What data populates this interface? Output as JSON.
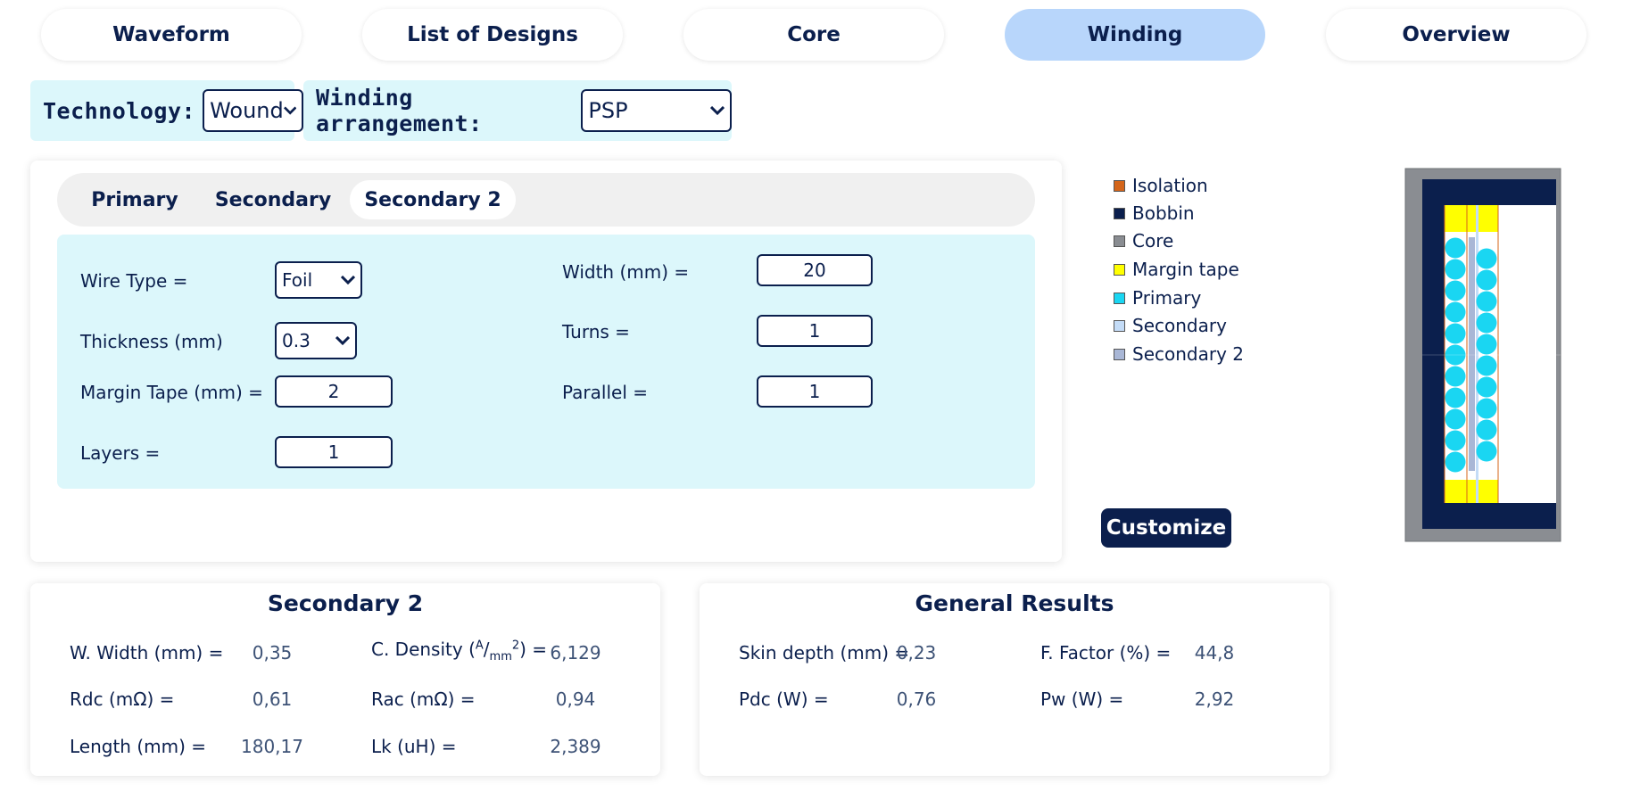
{
  "nav": {
    "tabs": [
      {
        "label": "Waveform"
      },
      {
        "label": "List of Designs"
      },
      {
        "label": "Core"
      },
      {
        "label": "Winding"
      },
      {
        "label": "Overview"
      }
    ],
    "active_tab": "Winding"
  },
  "settings": {
    "technology_label": "Technology:",
    "technology_value": "Wound",
    "arrangement_label": "Winding arrangement:",
    "arrangement_value": "PSP"
  },
  "winding_tabs": [
    {
      "label": "Primary"
    },
    {
      "label": "Secondary"
    },
    {
      "label": "Secondary 2"
    }
  ],
  "form": {
    "wire_type_label": "Wire Type =",
    "wire_type_value": "Foil",
    "thickness_label": "Thickness (mm)",
    "thickness_value": "0.3",
    "margin_tape_label": "Margin Tape (mm) =",
    "margin_tape_value": "2",
    "layers_label": "Layers =",
    "layers_value": "1",
    "width_label": "Width (mm) =",
    "width_value": "20",
    "turns_label": "Turns =",
    "turns_value": "1",
    "parallel_label": "Parallel =",
    "parallel_value": "1"
  },
  "legend": [
    {
      "label": "Isolation",
      "color": "#d4651a"
    },
    {
      "label": "Bobbin",
      "color": "#0b1f4d"
    },
    {
      "label": "Core",
      "color": "#8a8d92"
    },
    {
      "label": "Margin tape",
      "color": "#ffff00"
    },
    {
      "label": "Primary",
      "color": "#1ad6f2"
    },
    {
      "label": "Secondary",
      "color": "#c4dcf7"
    },
    {
      "label": "Secondary 2",
      "color": "#a9b7d6"
    }
  ],
  "customize_label": "Customize",
  "winding_results": {
    "title": "Secondary 2",
    "w_width_label": "W. Width (mm) =",
    "w_width_value": "0,35",
    "c_density_label": "C. Density (",
    "c_density_unit_num": "A",
    "c_density_unit_den": "mm",
    "c_density_unit_exp": "2",
    "c_density_suffix": ") =",
    "c_density_value": "6,129",
    "rdc_label": "Rdc (mΩ) =",
    "rdc_value": "0,61",
    "rac_label": "Rac (mΩ) =",
    "rac_value": "0,94",
    "length_label": "Length (mm) =",
    "length_value": "180,17",
    "lk_label": "Lk (uH) =",
    "lk_value": "2,389"
  },
  "general_results": {
    "title": "General Results",
    "skin_depth_label": "Skin depth (mm) =",
    "skin_depth_value": "0,23",
    "f_factor_label": "F. Factor (%) =",
    "f_factor_value": "44,8",
    "pdc_label": "Pdc (W) =",
    "pdc_value": "0,76",
    "pw_label": "Pw (W) =",
    "pw_value": "2,92"
  },
  "colors": {
    "accent": "#b8d6fb",
    "navy": "#0b1f4d",
    "panel_bg": "#dcf7fb"
  }
}
